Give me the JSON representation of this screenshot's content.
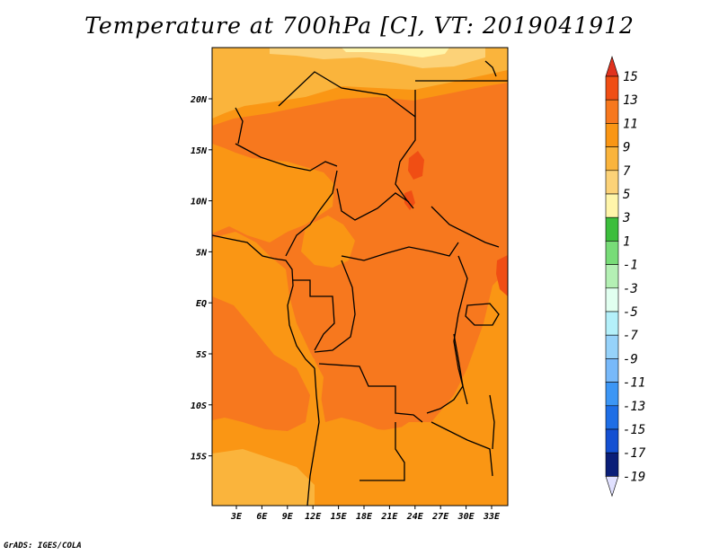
{
  "title": "Temperature at 700hPa [C], VT: 2019041912",
  "credit": "GrADS: IGES/COLA",
  "map": {
    "lat_labels": [
      "20N",
      "15N",
      "10N",
      "5N",
      "EQ",
      "5S",
      "10S",
      "15S"
    ],
    "lon_labels": [
      "3E",
      "6E",
      "9E",
      "12E",
      "15E",
      "18E",
      "21E",
      "24E",
      "27E",
      "30E",
      "33E"
    ],
    "field_description": "700 hPa temperature over central Africa"
  },
  "colorbar": {
    "unit": "C",
    "levels": [
      {
        "label": "15",
        "color": "#e0321e"
      },
      {
        "label": "13",
        "color": "#f04e14"
      },
      {
        "label": "11",
        "color": "#f7781e"
      },
      {
        "label": "9",
        "color": "#fa9614"
      },
      {
        "label": "7",
        "color": "#fab43c"
      },
      {
        "label": "5",
        "color": "#fcd278"
      },
      {
        "label": "3",
        "color": "#fff5aa"
      },
      {
        "label": "1",
        "color": "#3cbe3c"
      },
      {
        "label": "-1",
        "color": "#78dc78"
      },
      {
        "label": "-3",
        "color": "#b4f0b4"
      },
      {
        "label": "-5",
        "color": "#e1fff0"
      },
      {
        "label": "-7",
        "color": "#b4f0fa"
      },
      {
        "label": "-9",
        "color": "#96d2fa"
      },
      {
        "label": "-11",
        "color": "#78b9fa"
      },
      {
        "label": "-13",
        "color": "#3c96f5"
      },
      {
        "label": "-15",
        "color": "#1e6ee6"
      },
      {
        "label": "-17",
        "color": "#1450d2"
      },
      {
        "label": "-19",
        "color": "#0a1e78"
      },
      {
        "label": "",
        "color": "#e1e1ff"
      }
    ]
  }
}
